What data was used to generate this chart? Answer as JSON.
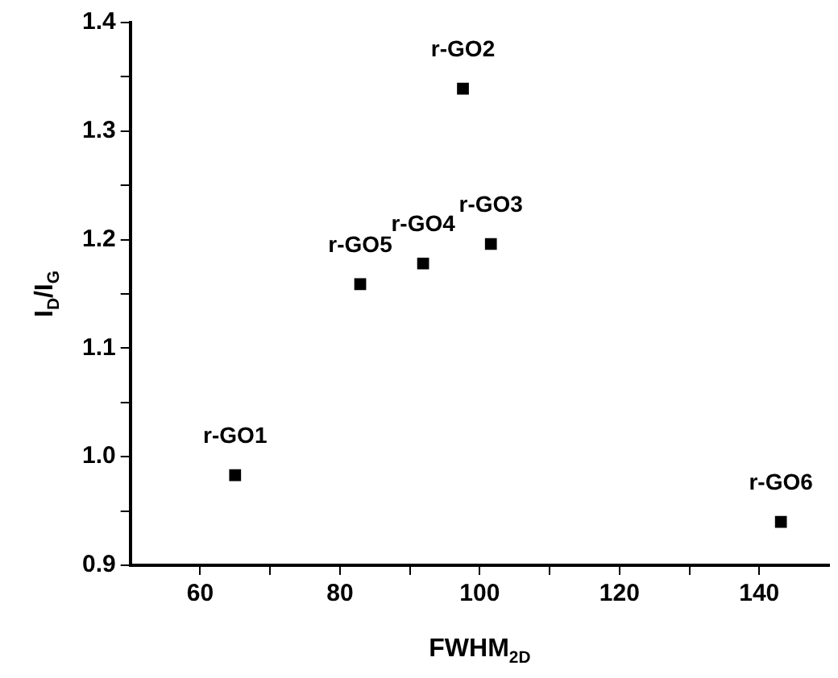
{
  "chart_data": {
    "type": "scatter",
    "xlabel": "FWHM$_{2D}$",
    "ylabel": "I$_{D}$/I$_{G}$",
    "x": [
      65,
      97.6,
      101.6,
      91.9,
      82.9,
      143.1
    ],
    "values": [
      0.983,
      1.339,
      1.196,
      1.178,
      1.159,
      0.94
    ],
    "color": "#000000",
    "marker": "square",
    "grid": false,
    "xlim": [
      50,
      150
    ],
    "xticks": [
      60,
      {
        "value": 70,
        "label": null
      },
      80,
      {
        "value": 90,
        "label": null
      },
      100,
      {
        "value": 110,
        "label": null
      },
      120,
      {
        "value": 130,
        "label": null
      },
      140
    ],
    "ylim": [
      0.9,
      1.4
    ],
    "yticks": [
      0.9,
      {
        "value": 0.95,
        "label": null
      },
      {
        "value": 1,
        "label": "1.0"
      },
      {
        "value": 1.05,
        "label": null
      },
      1.1,
      {
        "value": 1.15,
        "label": null
      },
      1.2,
      {
        "value": 1.25,
        "label": null
      },
      1.3,
      {
        "value": 1.35,
        "label": null
      },
      1.4
    ],
    "annotations": [
      {
        "text": "r-GO1",
        "x": 65,
        "y": 0.983
      },
      {
        "text": "r-GO2",
        "x": 97.6,
        "y": 1.339
      },
      {
        "text": "r-GO3",
        "x": 101.6,
        "y": 1.196
      },
      {
        "text": "r-GO4",
        "x": 91.9,
        "y": 1.178
      },
      {
        "text": "r-GO5",
        "x": 82.9,
        "y": 1.159
      },
      {
        "text": "r-GO6",
        "x": 143.1,
        "y": 0.94
      }
    ]
  }
}
